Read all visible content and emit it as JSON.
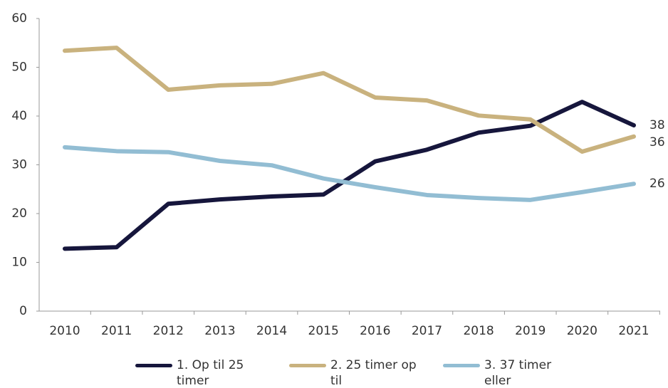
{
  "chart_data": {
    "type": "line",
    "categories": [
      "2010",
      "2011",
      "2012",
      "2013",
      "2014",
      "2015",
      "2016",
      "2017",
      "2018",
      "2019",
      "2020",
      "2021"
    ],
    "series": [
      {
        "name": "1. Op til 25 timer",
        "color": "#16163c",
        "values": [
          12.8,
          13.1,
          22.0,
          22.9,
          23.5,
          23.9,
          30.7,
          33.1,
          36.6,
          38.0,
          42.9,
          38.1
        ],
        "value_labels": [
          null,
          null,
          null,
          null,
          null,
          null,
          null,
          null,
          null,
          null,
          null,
          "38"
        ]
      },
      {
        "name": "2. 25 timer op til",
        "color": "#c9b27e",
        "values": [
          53.4,
          54.0,
          45.4,
          46.3,
          46.6,
          48.8,
          43.8,
          43.2,
          40.1,
          39.3,
          32.7,
          35.8
        ],
        "value_labels": [
          null,
          null,
          null,
          null,
          null,
          null,
          null,
          null,
          null,
          null,
          null,
          "36"
        ]
      },
      {
        "name": "3. 37 timer eller",
        "color": "#92bdd3",
        "values": [
          33.6,
          32.8,
          32.6,
          30.8,
          29.9,
          27.2,
          25.4,
          23.8,
          23.2,
          22.8,
          24.4,
          26.1
        ],
        "value_labels": [
          null,
          null,
          null,
          null,
          null,
          null,
          null,
          null,
          null,
          null,
          null,
          "26"
        ]
      }
    ],
    "ylim": [
      0,
      60
    ],
    "yticks": [
      0,
      10,
      20,
      30,
      40,
      50,
      60
    ],
    "grid": false,
    "legend": "bottom"
  }
}
